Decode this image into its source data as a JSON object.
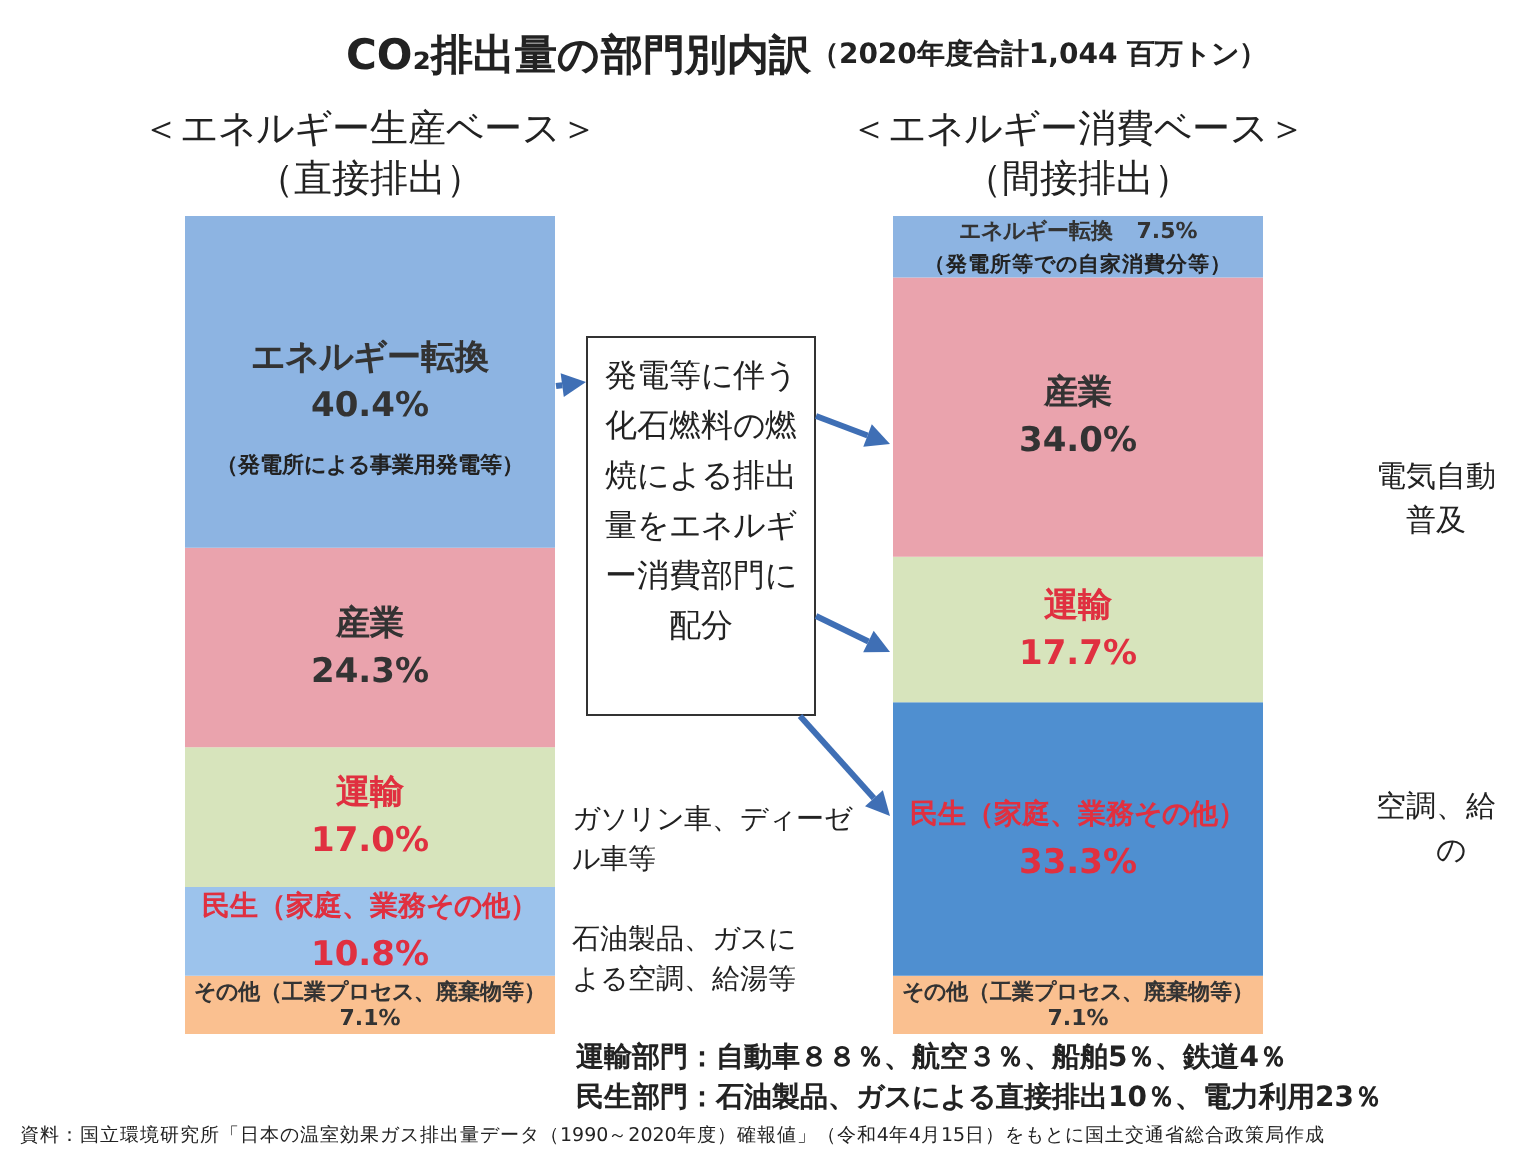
{
  "chart_data": {
    "type": "bar",
    "title": "CO₂排出量の部門別内訳",
    "subtitle": "（2020年度合計1,044 百万トン）",
    "categories": [
      "＜エネルギー生産ベース＞（直接排出）",
      "＜エネルギー消費ベース＞（間接排出）"
    ],
    "stacked": true,
    "legend": false,
    "grid": false,
    "tick_labels": "x",
    "series": [
      {
        "name": "その他（工業プロセス、廃棄物等）",
        "colors": [
          "#fac090",
          "#fac090"
        ],
        "values": [
          7.1,
          7.1
        ],
        "value_labels": [
          "7.1%",
          "7.1%"
        ]
      },
      {
        "name": "民生（家庭、業務その他）",
        "colors": [
          "#9cc3ec",
          "#4f8fd0"
        ],
        "values": [
          10.8,
          33.3
        ],
        "value_labels": [
          "10.8%",
          "33.3%"
        ]
      },
      {
        "name": "運輸",
        "colors": [
          "#d7e4bc",
          "#d7e4bc"
        ],
        "values": [
          17.0,
          17.7
        ],
        "value_labels": [
          "17.0%",
          "17.7%"
        ]
      },
      {
        "name": "産業",
        "colors": [
          "#eaa3ad",
          "#eaa3ad"
        ],
        "values": [
          24.3,
          34.0
        ],
        "value_labels": [
          "24.3%",
          "34.0%"
        ]
      },
      {
        "name": "エネルギー転換",
        "colors": [
          "#8db4e2",
          "#8db4e2"
        ],
        "values": [
          40.4,
          7.5
        ],
        "value_labels": [
          "40.4%",
          "7.5%"
        ]
      }
    ],
    "annotations": [
      "発電等に伴う化石燃料の燃焼による排出量をエネルギー消費部門に配分",
      "ガソリン車、ディーゼル車等",
      "石油製品、ガスによる空調、給湯等",
      "電気自動",
      "普及",
      "空調、給",
      "の",
      "運輸部門：自動車８８％、航空３％、船舶5％、鉄道4％",
      "民生部門：石油製品、ガスによる直接排出10％、電力利用23％",
      "資料：国立環境研究所「日本の温室効果ガス排出量データ（1990～2020年度）確報値」（令和4年4月15日）をもとに国土交通省総合政策局作成",
      "（発電所による事業用発電等）",
      "（発電所等での自家消費分等）"
    ]
  }
}
